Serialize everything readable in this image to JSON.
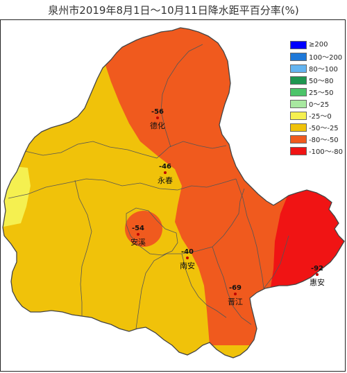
{
  "title": "泉州市2019年8月1日～10月11日降水距平百分率(%)",
  "legend": [
    {
      "label": "≥200",
      "color": "#0000ff"
    },
    {
      "label": "100～200",
      "color": "#1e78d8"
    },
    {
      "label": "80～100",
      "color": "#64b4f0"
    },
    {
      "label": "50～80",
      "color": "#1e9650"
    },
    {
      "label": "25～50",
      "color": "#4cc46a"
    },
    {
      "label": "0～25",
      "color": "#a8e8a0"
    },
    {
      "label": "-25～0",
      "color": "#f5f050"
    },
    {
      "label": "-50～-25",
      "color": "#f0c20a"
    },
    {
      "label": "-80～-50",
      "color": "#f05a1e"
    },
    {
      "label": "-100～-80",
      "color": "#f01414"
    }
  ],
  "stations": [
    {
      "name": "德化",
      "value": "-56"
    },
    {
      "name": "永春",
      "value": "-46"
    },
    {
      "name": "安溪",
      "value": "-54"
    },
    {
      "name": "南安",
      "value": "-40"
    },
    {
      "name": "晋江",
      "value": "-69"
    },
    {
      "name": "惠安",
      "value": "-92"
    }
  ]
}
